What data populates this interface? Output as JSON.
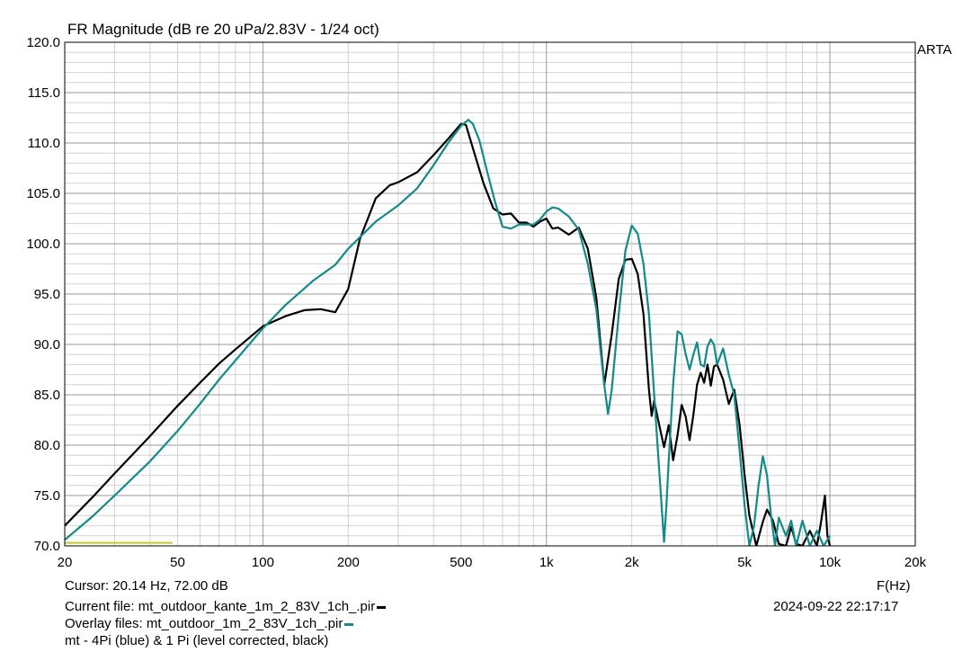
{
  "header": {
    "title": "FR Magnitude (dB re 20 uPa/2.83V - 1/24 oct)",
    "brand": "ARTA"
  },
  "footer": {
    "cursor": "Cursor: 20.14 Hz, 72.00 dB",
    "current_file": "Current file: mt_outdoor_kante_1m_2_83V_1ch_.pir",
    "overlay_files": "Overlay files: mt_outdoor_1m_2_83V_1ch_.pir",
    "note": "mt - 4Pi (blue) & 1 Pi (level corrected, black)",
    "timestamp": "2024-09-22  22:17:17"
  },
  "colors": {
    "black_curve": "#000000",
    "teal_curve": "#138a8a",
    "cursor_line": "#c8c82a",
    "grid_major": "#9a9a9a",
    "grid_minor": "#d2d2d2"
  },
  "chart_data": {
    "type": "line",
    "title": "FR Magnitude (dB re 20 uPa/2.83V - 1/24 oct)",
    "xlabel": "F(Hz)",
    "ylabel": "",
    "xscale": "log",
    "xlim": [
      20,
      20000
    ],
    "ylim": [
      70,
      120
    ],
    "grid": true,
    "xticks": [
      20,
      50,
      100,
      200,
      500,
      1000,
      2000,
      5000,
      10000,
      20000
    ],
    "xtick_labels": [
      "20",
      "50",
      "100",
      "200",
      "500",
      "1k",
      "2k",
      "5k",
      "10k",
      "20k"
    ],
    "yticks": [
      70,
      75,
      80,
      85,
      90,
      95,
      100,
      105,
      110,
      115,
      120
    ],
    "ytick_labels": [
      "70.0",
      "75.0",
      "80.0",
      "85.0",
      "90.0",
      "95.0",
      "100.0",
      "105.0",
      "110.0",
      "115.0",
      "120.0"
    ],
    "series": [
      {
        "name": "mt_outdoor_kante_1m_2_83V_1ch_.pir",
        "color": "#000000",
        "x": [
          20,
          25,
          30,
          40,
          50,
          60,
          70,
          80,
          100,
          120,
          140,
          160,
          180,
          200,
          220,
          250,
          280,
          300,
          350,
          400,
          450,
          500,
          520,
          550,
          600,
          650,
          700,
          750,
          800,
          850,
          900,
          950,
          1000,
          1050,
          1100,
          1200,
          1300,
          1400,
          1500,
          1600,
          1700,
          1800,
          1900,
          2000,
          2100,
          2200,
          2300,
          2350,
          2400,
          2500,
          2600,
          2700,
          2800,
          2900,
          3000,
          3100,
          3200,
          3300,
          3400,
          3500,
          3600,
          3700,
          3800,
          3900,
          4000,
          4200,
          4400,
          4600,
          4800,
          5000,
          5200,
          5500,
          5800,
          6000,
          6300,
          6600,
          7000,
          7300,
          7600,
          8000,
          8500,
          9000,
          9300,
          9600,
          9800,
          10000
        ],
        "y": [
          72.0,
          74.8,
          77.2,
          80.9,
          83.9,
          86.2,
          88.1,
          89.5,
          91.8,
          92.8,
          93.4,
          93.5,
          93.2,
          95.5,
          100.5,
          104.5,
          105.8,
          106.1,
          107.1,
          108.8,
          110.4,
          111.9,
          111.8,
          109.5,
          106.0,
          103.5,
          102.9,
          103.0,
          102.1,
          102.1,
          101.7,
          102.2,
          102.5,
          101.5,
          101.6,
          100.9,
          101.6,
          99.5,
          94.6,
          86.0,
          91.0,
          96.5,
          98.4,
          98.5,
          97.0,
          93.0,
          85.5,
          82.9,
          84.4,
          82.0,
          79.8,
          82.0,
          78.5,
          81.0,
          84.0,
          82.8,
          80.5,
          83.0,
          86.0,
          87.2,
          86.2,
          88.0,
          85.9,
          87.8,
          88.0,
          86.5,
          84.1,
          85.5,
          82.0,
          77.0,
          73.0,
          70.0,
          72.4,
          73.6,
          72.5,
          70.2,
          70.0,
          71.9,
          70.2,
          70.0,
          71.5,
          70.0,
          72.3,
          75.0,
          71.0,
          70.0
        ]
      },
      {
        "name": "mt_outdoor_1m_2_83V_1ch_.pir",
        "color": "#138a8a",
        "x": [
          20,
          25,
          30,
          40,
          50,
          60,
          70,
          80,
          100,
          120,
          150,
          180,
          200,
          250,
          300,
          350,
          400,
          450,
          500,
          530,
          550,
          580,
          620,
          660,
          700,
          750,
          800,
          850,
          900,
          950,
          1000,
          1050,
          1100,
          1200,
          1300,
          1400,
          1500,
          1550,
          1600,
          1650,
          1700,
          1800,
          1900,
          2000,
          2100,
          2200,
          2300,
          2400,
          2500,
          2600,
          2650,
          2700,
          2800,
          2900,
          3000,
          3100,
          3200,
          3300,
          3400,
          3500,
          3600,
          3700,
          3800,
          3900,
          4000,
          4200,
          4400,
          4600,
          4800,
          5000,
          5200,
          5400,
          5600,
          5800,
          6000,
          6200,
          6400,
          6600,
          7000,
          7300,
          7600,
          8000,
          8500,
          9000,
          9500,
          10000
        ],
        "y": [
          70.6,
          72.9,
          75.0,
          78.4,
          81.4,
          84.1,
          86.5,
          88.4,
          91.6,
          93.9,
          96.3,
          97.9,
          99.5,
          102.2,
          103.8,
          105.5,
          107.8,
          110.0,
          111.7,
          112.3,
          111.9,
          110.3,
          107.0,
          104.1,
          101.7,
          101.5,
          101.9,
          101.9,
          101.9,
          102.4,
          103.2,
          103.6,
          103.5,
          102.7,
          101.4,
          98.0,
          93.5,
          89.5,
          86.0,
          83.1,
          85.5,
          93.0,
          99.3,
          101.8,
          101.0,
          98.0,
          93.0,
          85.0,
          77.5,
          70.4,
          74.0,
          78.5,
          86.0,
          91.3,
          91.0,
          89.0,
          87.5,
          89.0,
          90.2,
          88.0,
          87.8,
          89.8,
          90.5,
          90.0,
          88.0,
          89.6,
          87.0,
          85.0,
          79.5,
          74.0,
          70.0,
          72.0,
          76.0,
          78.9,
          77.0,
          73.0,
          70.0,
          72.8,
          71.0,
          72.5,
          70.0,
          72.5,
          70.0,
          71.5,
          70.0,
          71.0
        ]
      },
      {
        "name": "",
        "color": "#c8c82a",
        "x": [
          20,
          48
        ],
        "y": [
          70.3,
          70.3
        ]
      }
    ]
  }
}
